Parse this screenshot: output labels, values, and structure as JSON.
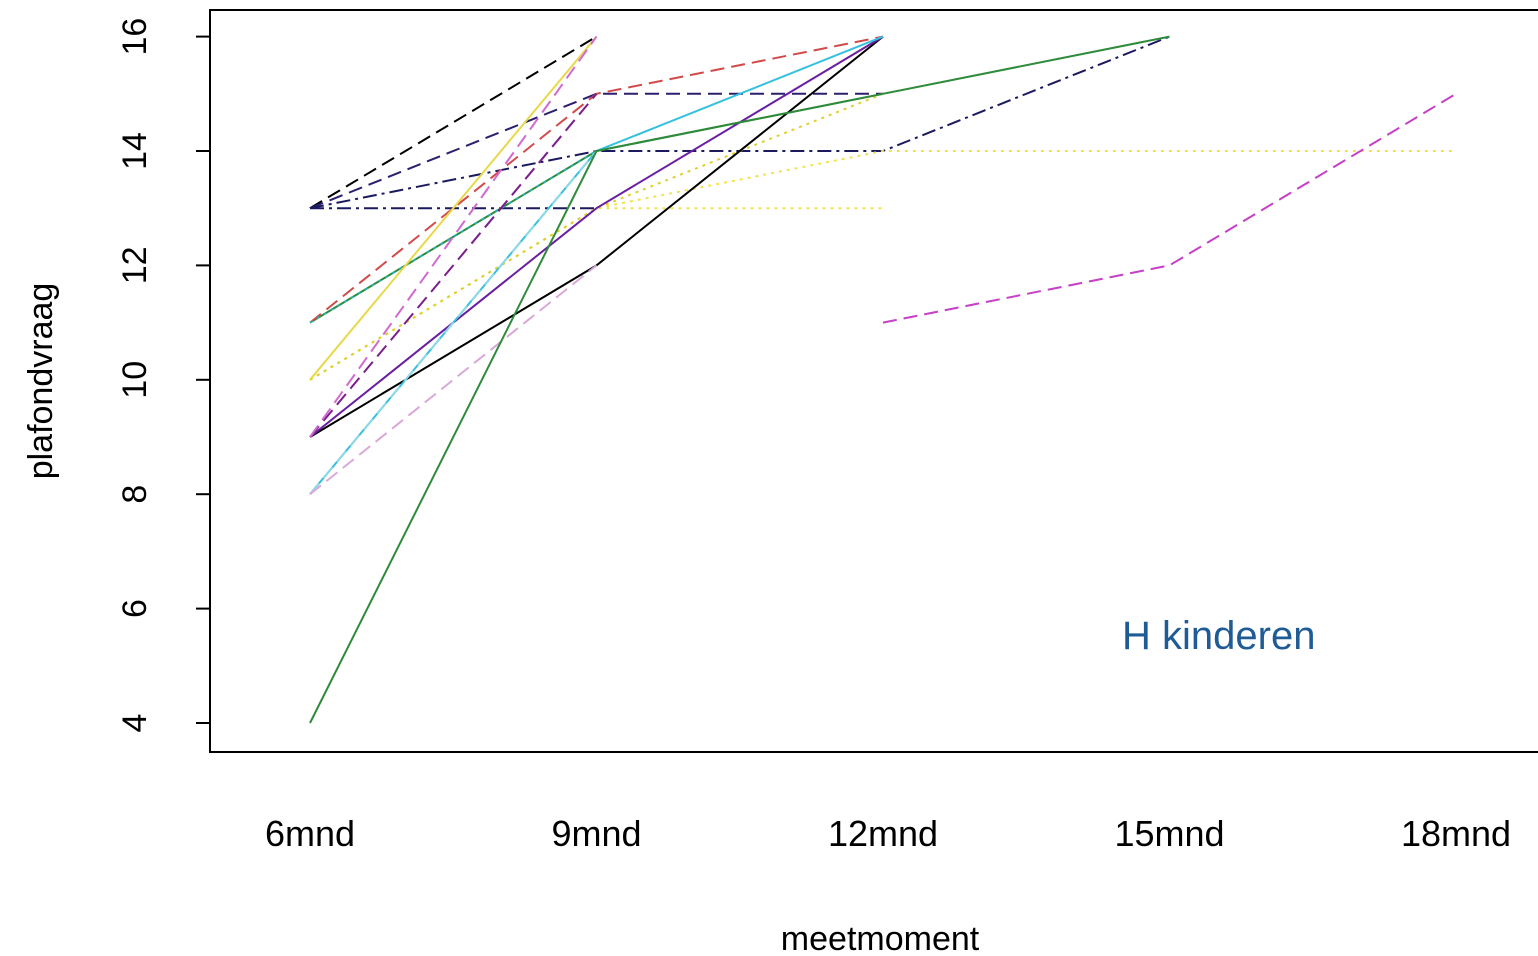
{
  "chart_data": {
    "type": "line",
    "title": "",
    "xlabel": "meetmoment",
    "ylabel": "plafondvraag",
    "categories": [
      "6mnd",
      "9mnd",
      "12mnd",
      "15mnd",
      "18mnd"
    ],
    "yticks": [
      4,
      6,
      8,
      10,
      12,
      14,
      16
    ],
    "ylim": [
      3.6,
      16.5
    ],
    "grid": false,
    "legend": "none",
    "annotation": {
      "text": "H kinderen",
      "color": "#1f5b94"
    },
    "series": [
      {
        "values": [
          13,
          16,
          null,
          null,
          null
        ],
        "color": "#000000",
        "dash": "dashed"
      },
      {
        "values": [
          13,
          15,
          15,
          null,
          null
        ],
        "color": "#2b1f6e",
        "dash": "dashed"
      },
      {
        "values": [
          13,
          14,
          14,
          16,
          null
        ],
        "color": "#1c1a5e",
        "dash": "dotdash"
      },
      {
        "values": [
          13,
          13,
          null,
          null,
          null
        ],
        "color": "#1c1a5e",
        "dash": "dotdash"
      },
      {
        "values": [
          11,
          14,
          15,
          16,
          null
        ],
        "color": "#2e8b3a",
        "dash": "solid"
      },
      {
        "values": [
          11,
          15,
          16,
          null,
          null
        ],
        "color": "#d24a4a",
        "dash": "dashed"
      },
      {
        "values": [
          11,
          14,
          null,
          null,
          null
        ],
        "color": "#2ab0b0",
        "dash": "dotted"
      },
      {
        "values": [
          10,
          16,
          null,
          null,
          null
        ],
        "color": "#e8d84a",
        "dash": "solid"
      },
      {
        "values": [
          10,
          13,
          14,
          14,
          14
        ],
        "color": "#f2e24c",
        "dash": "dotted"
      },
      {
        "values": [
          10,
          13,
          13,
          null,
          null
        ],
        "color": "#f2e24c",
        "dash": "dotted"
      },
      {
        "values": [
          10,
          13,
          15,
          null,
          null
        ],
        "color": "#e0cf30",
        "dash": "dotted"
      },
      {
        "values": [
          9,
          12,
          16,
          null,
          null
        ],
        "color": "#000000",
        "dash": "solid"
      },
      {
        "values": [
          9,
          15,
          null,
          null,
          null
        ],
        "color": "#7a1e8c",
        "dash": "dashed"
      },
      {
        "values": [
          9,
          13,
          16,
          null,
          null
        ],
        "color": "#6a1ea0",
        "dash": "solid"
      },
      {
        "values": [
          9,
          16,
          null,
          null,
          null
        ],
        "color": "#d06ad0",
        "dash": "dashed"
      },
      {
        "values": [
          8,
          14,
          16,
          null,
          null
        ],
        "color": "#35c0e0",
        "dash": "solid"
      },
      {
        "values": [
          8,
          14,
          null,
          null,
          null
        ],
        "color": "#8fd8e8",
        "dash": "dashed"
      },
      {
        "values": [
          8,
          12,
          null,
          null,
          null
        ],
        "color": "#d8a8d8",
        "dash": "dashed"
      },
      {
        "values": [
          4,
          14,
          15,
          null,
          null
        ],
        "color": "#2e8b3a",
        "dash": "solid"
      },
      {
        "values": [
          null,
          null,
          11,
          12,
          15
        ],
        "color": "#c63fc6",
        "dash": "dashed"
      }
    ]
  }
}
